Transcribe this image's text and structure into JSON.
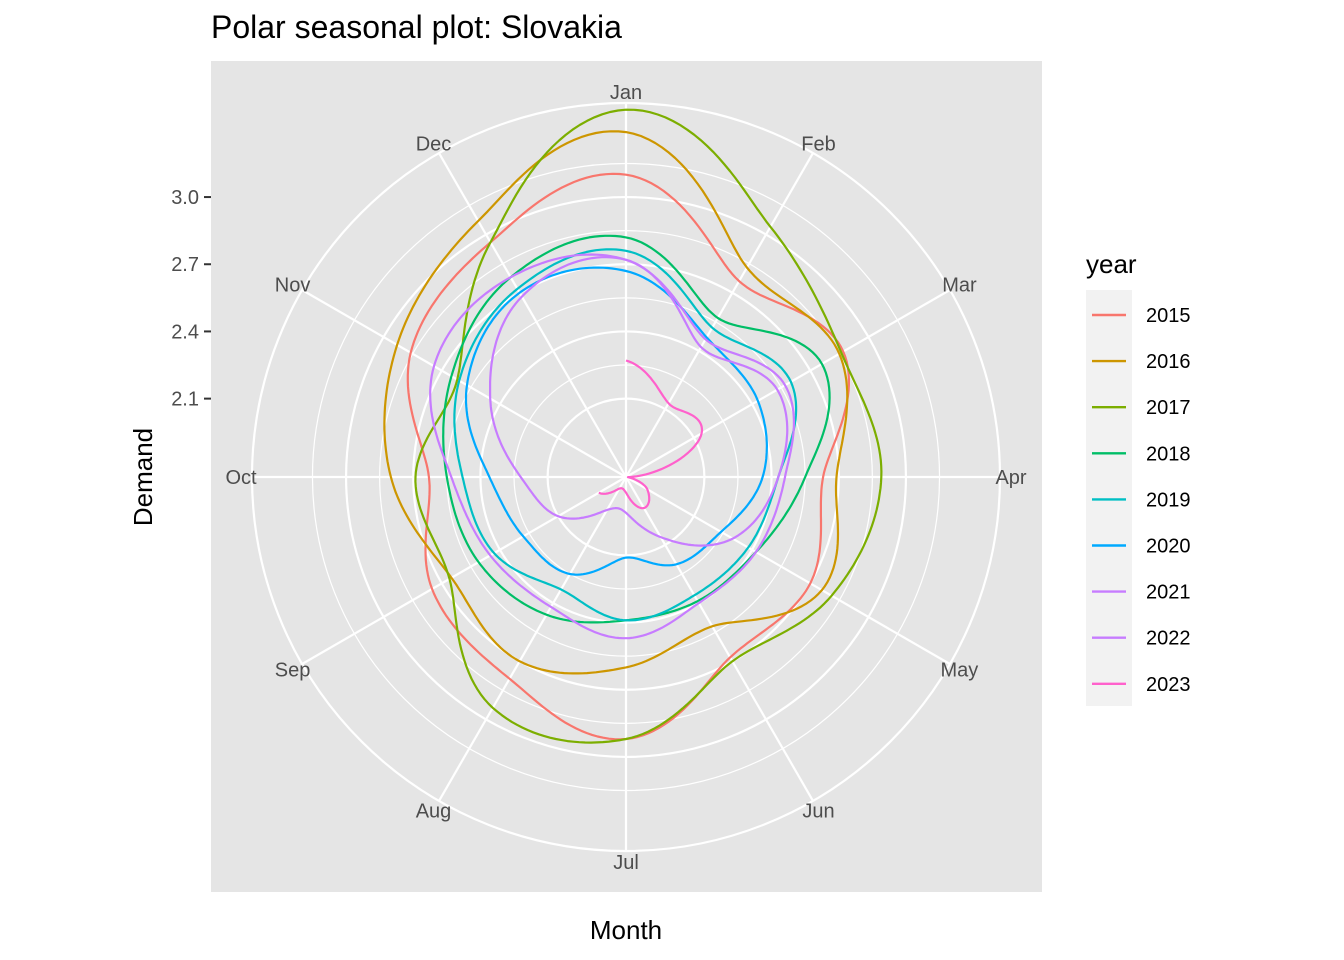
{
  "chart_data": {
    "type": "line",
    "coordinate_system": "polar",
    "title": "Polar seasonal plot: Slovakia",
    "xlabel": "Month",
    "ylabel": "Demand",
    "months": [
      "Jan",
      "Feb",
      "Mar",
      "Apr",
      "May",
      "Jun",
      "Jul",
      "Aug",
      "Sep",
      "Oct",
      "Nov",
      "Dec"
    ],
    "radial_ticks": [
      2.1,
      2.4,
      2.7,
      3.0
    ],
    "radial_tick_labels": [
      "2.1",
      "2.4",
      "2.7",
      "3.0"
    ],
    "radial_range": [
      1.75,
      3.42
    ],
    "legend_title": "year",
    "legend_position": "right",
    "grid": true,
    "series": [
      {
        "name": "2015",
        "color": "#F8766D",
        "values": [
          3.1,
          2.76,
          2.87,
          2.63,
          2.7,
          2.68,
          2.92,
          2.79,
          2.75,
          2.63,
          2.86,
          2.96
        ]
      },
      {
        "name": "2016",
        "color": "#CD9600",
        "values": [
          3.29,
          2.83,
          2.85,
          2.69,
          2.76,
          2.52,
          2.6,
          2.7,
          2.65,
          2.8,
          2.93,
          3.07
        ]
      },
      {
        "name": "2017",
        "color": "#7CAE00",
        "values": [
          3.39,
          3.04,
          2.86,
          2.89,
          2.81,
          2.7,
          2.92,
          2.94,
          2.66,
          2.69,
          2.62,
          2.96
        ]
      },
      {
        "name": "2018",
        "color": "#00BE67",
        "values": [
          2.82,
          2.57,
          2.76,
          2.55,
          2.42,
          2.39,
          2.39,
          2.46,
          2.51,
          2.55,
          2.65,
          2.78
        ]
      },
      {
        "name": "2019",
        "color": "#00BFC4",
        "values": [
          2.76,
          2.52,
          2.6,
          2.43,
          2.38,
          2.36,
          2.39,
          2.33,
          2.43,
          2.48,
          2.61,
          2.72
        ]
      },
      {
        "name": "2020",
        "color": "#00A9FF",
        "values": [
          2.67,
          2.47,
          2.43,
          2.36,
          2.24,
          2.2,
          2.11,
          2.25,
          2.28,
          2.36,
          2.57,
          2.7
        ]
      },
      {
        "name": "2021",
        "color": "#C77CFF",
        "values": [
          2.72,
          2.46,
          2.57,
          2.46,
          2.42,
          2.4,
          2.47,
          2.42,
          2.45,
          2.53,
          2.74,
          2.78
        ]
      },
      {
        "name": "2022",
        "color": "#C77CFF",
        "values": [
          2.72,
          2.42,
          2.53,
          2.43,
          2.3,
          2.06,
          1.91,
          1.92,
          2.1,
          2.22,
          2.45,
          2.68
        ]
      },
      {
        "name": "2023",
        "color": "#FF61CC",
        "values": [
          2.27,
          2.13,
          2.14,
          1.77,
          1.86,
          1.91,
          1.82,
          1.81,
          1.89
        ]
      }
    ]
  }
}
